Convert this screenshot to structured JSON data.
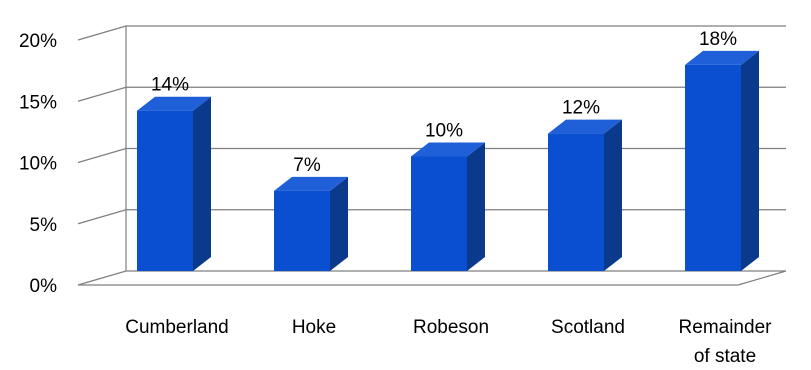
{
  "chart_data": {
    "type": "bar",
    "three_d": true,
    "categories": [
      [
        "Cumberland"
      ],
      [
        "Hoke"
      ],
      [
        "Robeson"
      ],
      [
        "Scotland"
      ],
      [
        "Remainder",
        "of state"
      ]
    ],
    "values": [
      14,
      7,
      10,
      12,
      18
    ],
    "data_labels": [
      "14%",
      "7%",
      "10%",
      "12%",
      "18%"
    ],
    "y_ticks": [
      "0%",
      "5%",
      "10%",
      "15%",
      "20%"
    ],
    "ylim": [
      0,
      20
    ],
    "grid": true,
    "legend": "none",
    "colors": {
      "bar_front": "#0a4fd0",
      "bar_side": "#0b3a8c",
      "bar_top": "#1f5fd8",
      "grid": "#7f7f7f"
    }
  }
}
